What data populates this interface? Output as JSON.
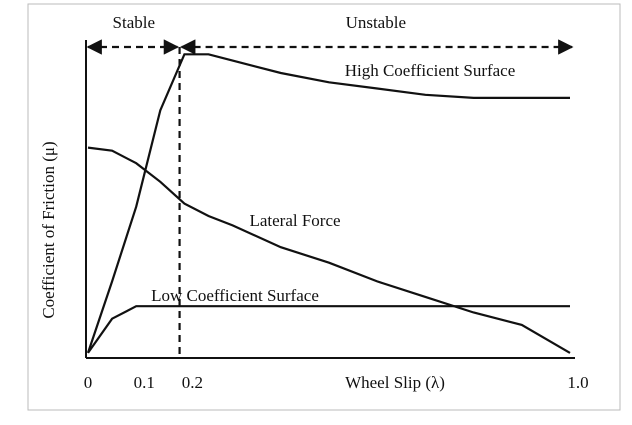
{
  "chart_data": {
    "type": "line",
    "x_label": "Wheel Slip (λ)",
    "y_label": "Coefficient of Friction (μ)",
    "x": [
      0,
      0.05,
      0.1,
      0.15,
      0.2,
      0.25,
      0.3,
      0.4,
      0.5,
      0.6,
      0.7,
      0.8,
      0.9,
      1.0
    ],
    "series": [
      {
        "name": "High Coefficient Surface",
        "color": "#111111",
        "values": [
          0.01,
          0.24,
          0.48,
          0.79,
          0.97,
          0.97,
          0.95,
          0.91,
          0.88,
          0.86,
          0.84,
          0.83,
          0.83,
          0.83
        ]
      },
      {
        "name": "Lateral Force",
        "color": "#111111",
        "values": [
          0.67,
          0.66,
          0.62,
          0.56,
          0.49,
          0.45,
          0.42,
          0.35,
          0.3,
          0.24,
          0.19,
          0.14,
          0.1,
          0.01
        ]
      },
      {
        "name": "Low Coefficient Surface",
        "color": "#111111",
        "values": [
          0.01,
          0.12,
          0.16,
          0.16,
          0.16,
          0.16,
          0.16,
          0.16,
          0.16,
          0.16,
          0.16,
          0.16,
          0.16,
          0.16
        ]
      }
    ],
    "regions": [
      "Stable",
      "Unstable"
    ],
    "boundary_x": 0.19,
    "xlim": [
      0,
      1
    ],
    "ylim": [
      0,
      1
    ],
    "xticks": [
      0,
      0.1,
      0.2,
      {
        "value": 1,
        "label": "1.0"
      }
    ]
  }
}
